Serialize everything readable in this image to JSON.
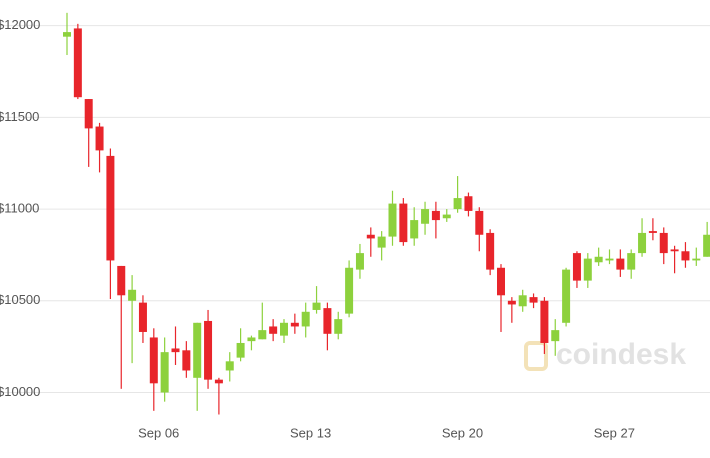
{
  "chart_data": {
    "type": "candlestick",
    "categories": [
      null,
      null,
      null,
      null,
      null,
      null,
      null,
      null,
      "Sep 06",
      null,
      null,
      null,
      null,
      null,
      null,
      null,
      null,
      null,
      null,
      null,
      null,
      null,
      "Sep 13",
      null,
      null,
      null,
      null,
      null,
      null,
      null,
      null,
      null,
      null,
      null,
      null,
      null,
      "Sep 20",
      null,
      null,
      null,
      null,
      null,
      null,
      null,
      null,
      null,
      null,
      null,
      null,
      null,
      "Sep 27",
      null,
      null,
      null,
      null,
      null,
      null,
      null,
      null,
      null
    ],
    "open": [
      11940,
      11985,
      11600,
      11450,
      11290,
      10690,
      10500,
      10490,
      10300,
      10000,
      10240,
      10230,
      10080,
      10390,
      10070,
      10120,
      10190,
      10280,
      10290,
      10360,
      10310,
      10380,
      10360,
      10450,
      10460,
      10320,
      10430,
      10670,
      10860,
      10790,
      10850,
      11030,
      10840,
      10920,
      10990,
      10950,
      11000,
      11070,
      10990,
      10870,
      10680,
      10500,
      10470,
      10520,
      10500,
      10280,
      10380,
      10760,
      10610,
      10710,
      10720,
      10730,
      10670,
      10760,
      10880,
      10870,
      10780,
      10770,
      10720,
      10740
    ],
    "high": [
      12070,
      12010,
      11600,
      11470,
      11330,
      10690,
      10640,
      10530,
      10350,
      10300,
      10360,
      10280,
      10380,
      10450,
      10080,
      10220,
      10350,
      10310,
      10490,
      10400,
      10400,
      10430,
      10490,
      10580,
      10490,
      10440,
      10720,
      10810,
      10900,
      10880,
      11100,
      11060,
      11010,
      11040,
      11040,
      11000,
      11180,
      11090,
      11010,
      10890,
      10700,
      10520,
      10560,
      10540,
      10520,
      10400,
      10680,
      10770,
      10760,
      10790,
      10780,
      10780,
      10780,
      10950,
      10950,
      10900,
      10800,
      10820,
      10790,
      10930
    ],
    "low": [
      11840,
      11600,
      11230,
      11200,
      10510,
      10020,
      10160,
      10270,
      9900,
      9950,
      10150,
      10080,
      9900,
      10020,
      9880,
      10060,
      10170,
      10230,
      10290,
      10280,
      10270,
      10320,
      10300,
      10430,
      10230,
      10290,
      10410,
      10620,
      10740,
      10720,
      10800,
      10800,
      10800,
      10860,
      10840,
      10930,
      10980,
      10960,
      10770,
      10640,
      10330,
      10380,
      10440,
      10460,
      10210,
      10200,
      10360,
      10570,
      10570,
      10690,
      10700,
      10630,
      10620,
      10740,
      10830,
      10700,
      10650,
      10680,
      10690,
      10740
    ],
    "close": [
      11965,
      11610,
      11440,
      11320,
      10720,
      10530,
      10560,
      10330,
      10050,
      10220,
      10220,
      10120,
      10380,
      10070,
      10050,
      10170,
      10270,
      10300,
      10340,
      10320,
      10380,
      10360,
      10440,
      10490,
      10320,
      10400,
      10680,
      10760,
      10840,
      10850,
      11030,
      10820,
      10940,
      11000,
      10940,
      10970,
      11060,
      10990,
      10860,
      10670,
      10530,
      10480,
      10530,
      10490,
      10270,
      10340,
      10670,
      10610,
      10730,
      10740,
      10730,
      10670,
      10760,
      10870,
      10870,
      10760,
      10770,
      10720,
      10730,
      10860
    ],
    "up_color": "#8dd13d",
    "down_color": "#e8252b",
    "ylim": [
      9850,
      12140
    ],
    "yticks": [
      {
        "value": 10000,
        "label": "$10000"
      },
      {
        "value": 10500,
        "label": "$10500"
      },
      {
        "value": 11000,
        "label": "$11000"
      },
      {
        "value": 11500,
        "label": "$11500"
      },
      {
        "value": 12000,
        "label": "$12000"
      }
    ],
    "grid": true,
    "watermark": "coindesk"
  }
}
